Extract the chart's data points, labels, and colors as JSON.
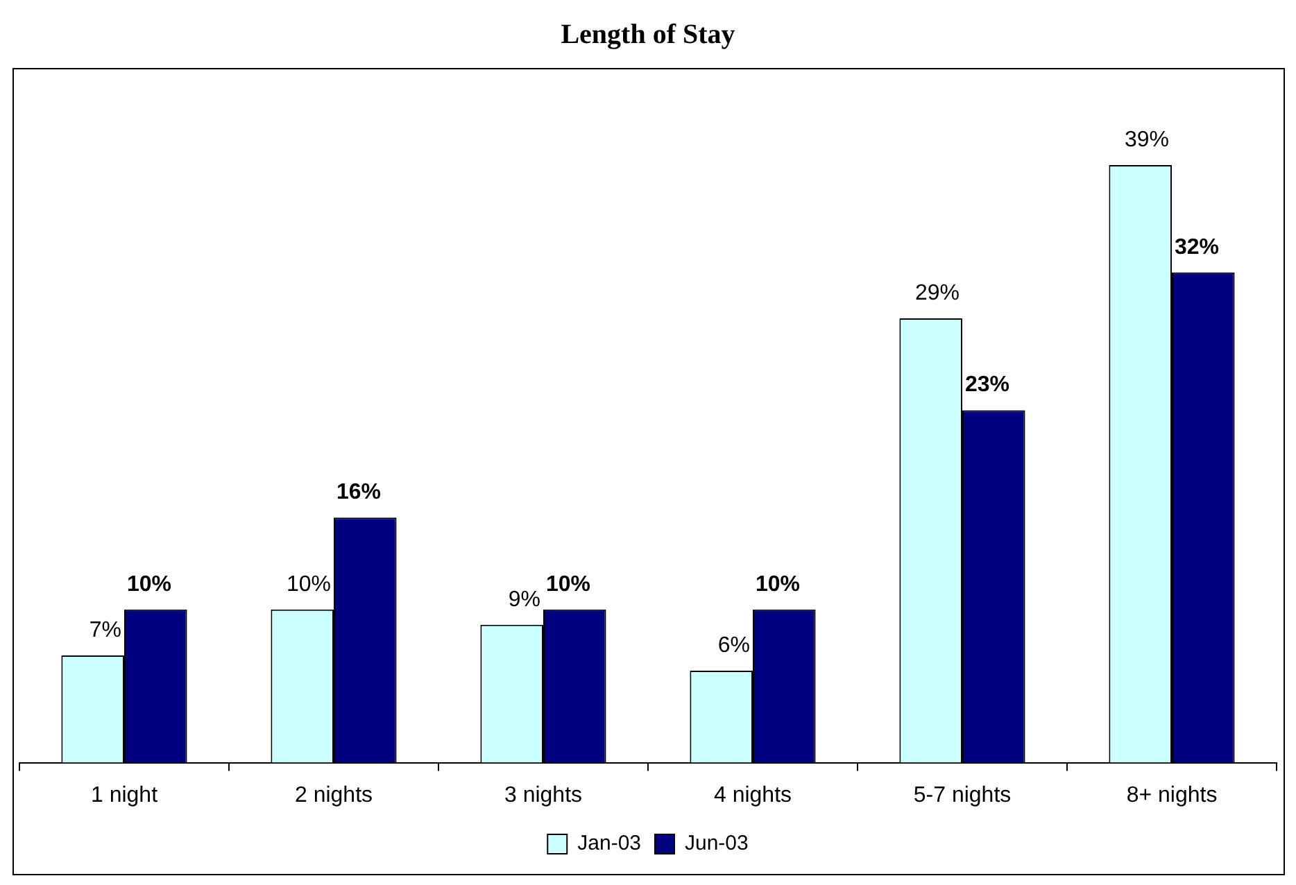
{
  "chart_data": {
    "type": "bar",
    "title": "Length of Stay",
    "categories": [
      "1 night",
      "2 nights",
      "3 nights",
      "4 nights",
      "5-7 nights",
      "8+ nights"
    ],
    "series": [
      {
        "name": "Jan-03",
        "color": "#ccffff",
        "values": [
          7,
          10,
          9,
          6,
          29,
          39
        ],
        "value_labels": [
          "7%",
          "10%",
          "9%",
          "6%",
          "29%",
          "39%"
        ]
      },
      {
        "name": "Jun-03",
        "color": "#000080",
        "values": [
          10,
          16,
          10,
          10,
          23,
          32
        ],
        "value_labels": [
          "10%",
          "16%",
          "10%",
          "10%",
          "23%",
          "32%"
        ]
      }
    ],
    "legend": "bottom",
    "grid": false,
    "tick_labels": "x"
  }
}
